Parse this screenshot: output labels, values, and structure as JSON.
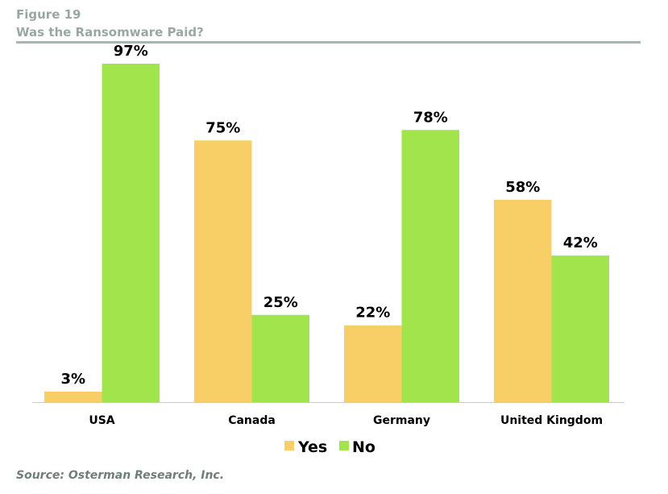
{
  "figure": {
    "label": "Figure 19",
    "title": "Was the Ransomware Paid?",
    "source": "Source: Osterman Research, Inc."
  },
  "colors": {
    "yes": "#f8cf66",
    "no": "#a2e44b",
    "baseline": "#c8c8c8"
  },
  "chart_data": {
    "type": "bar",
    "title": "Was the Ransomware Paid?",
    "categories": [
      "USA",
      "Canada",
      "Germany",
      "United Kingdom"
    ],
    "series": [
      {
        "name": "Yes",
        "values": [
          3,
          75,
          22,
          58
        ],
        "labels": [
          "3%",
          "75%",
          "22%",
          "58%"
        ]
      },
      {
        "name": "No",
        "values": [
          97,
          25,
          78,
          42
        ],
        "labels": [
          "97%",
          "25%",
          "78%",
          "42%"
        ]
      }
    ],
    "ylim": [
      0,
      100
    ],
    "grid": false,
    "legend": "bottom-center",
    "xlabel": "",
    "ylabel": ""
  }
}
